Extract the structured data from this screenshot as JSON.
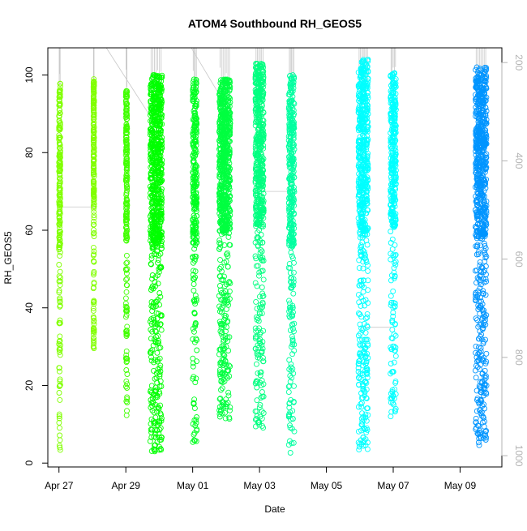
{
  "chart_data": {
    "type": "scatter",
    "title": "ATOM4 Southbound RH_GEOS5",
    "xlabel": "Date",
    "ylabel": "RH_GEOS5",
    "x_axis": {
      "type": "date",
      "range": [
        "2018-04-26T16:00",
        "2018-05-10T06:00"
      ],
      "ticks": [
        {
          "date": "2018-04-27",
          "label": "Apr 27"
        },
        {
          "date": "2018-04-29",
          "label": "Apr 29"
        },
        {
          "date": "2018-05-01",
          "label": "May 01"
        },
        {
          "date": "2018-05-03",
          "label": "May 03"
        },
        {
          "date": "2018-05-05",
          "label": "May 05"
        },
        {
          "date": "2018-05-07",
          "label": "May 07"
        },
        {
          "date": "2018-05-09",
          "label": "May 09"
        }
      ]
    },
    "y_axis": {
      "range": [
        -1,
        107
      ],
      "ticks": [
        0,
        20,
        40,
        60,
        80,
        100
      ]
    },
    "y2_axis": {
      "range": [
        1023,
        170
      ],
      "reversed": true,
      "ticks": [
        200,
        400,
        600,
        800,
        1000
      ],
      "color": "#b3b3b3"
    },
    "grid": false,
    "legend": "none",
    "series": [
      {
        "start": "2018-04-27T00:00",
        "end": "2018-04-27T01:00",
        "ymin": 2,
        "ymax": 98,
        "color": "#80ff00"
      },
      {
        "start": "2018-04-28T00:45",
        "end": "2018-04-28T01:15",
        "ymin": 29,
        "ymax": 99,
        "color": "#80ff00"
      },
      {
        "start": "2018-04-29T00:00",
        "end": "2018-04-29T01:00",
        "ymin": 10,
        "ymax": 96,
        "color": "#40ff00"
      },
      {
        "start": "2018-04-29T17:30",
        "end": "2018-04-30T02:00",
        "ymin": 3,
        "ymax": 100,
        "color": "#00ff00"
      },
      {
        "start": "2018-05-01T00:00",
        "end": "2018-05-01T03:00",
        "ymin": 5,
        "ymax": 99,
        "color": "#00ff20"
      },
      {
        "start": "2018-05-01T19:00",
        "end": "2018-05-02T03:00",
        "ymin": 11,
        "ymax": 99,
        "color": "#00ff40"
      },
      {
        "start": "2018-05-02T21:00",
        "end": "2018-05-03T03:00",
        "ymin": 9,
        "ymax": 103,
        "color": "#00ff80"
      },
      {
        "start": "2018-05-03T21:00",
        "end": "2018-05-04T01:00",
        "ymin": 1,
        "ymax": 100,
        "color": "#00ffa0"
      },
      {
        "start": "2018-05-05T23:00",
        "end": "2018-05-06T06:00",
        "ymin": 3,
        "ymax": 104,
        "color": "#00ffff"
      },
      {
        "start": "2018-05-06T22:00",
        "end": "2018-05-07T02:00",
        "ymin": 12,
        "ymax": 101,
        "color": "#00ffff"
      },
      {
        "start": "2018-05-09T11:00",
        "end": "2018-05-09T19:00",
        "ymin": 4,
        "ymax": 102,
        "color": "#0095ff"
      }
    ]
  }
}
